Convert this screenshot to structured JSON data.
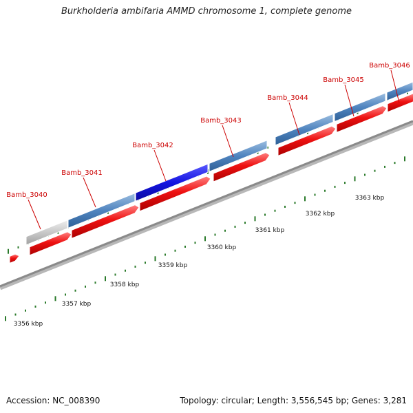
{
  "title": "Burkholderia ambifaria AMMD chromosome 1, complete genome",
  "footer": {
    "accession": "Accession: NC_008390",
    "summary": "Topology: circular; Length: 3,556,545 bp; Genes: 3,281"
  },
  "scale_labels": [
    "3356 kbp",
    "3357 kbp",
    "3358 kbp",
    "3359 kbp",
    "3360 kbp",
    "3361 kbp",
    "3362 kbp",
    "3363 kbp"
  ],
  "gene_labels": [
    "Bamb_3040",
    "Bamb_3041",
    "Bamb_3042",
    "Bamb_3043",
    "Bamb_3044",
    "Bamb_3045",
    "Bamb_3046"
  ],
  "colors": {
    "backbone": "#8a8a8a",
    "gene_bar": "#4f84bf",
    "gene_bar_selected": "#1414e0",
    "gene_bar_partial": "#c8c8c8",
    "cds_arrow": "#ee1111",
    "gene_label": "#cc0000",
    "tick": "#2a7a2a"
  }
}
